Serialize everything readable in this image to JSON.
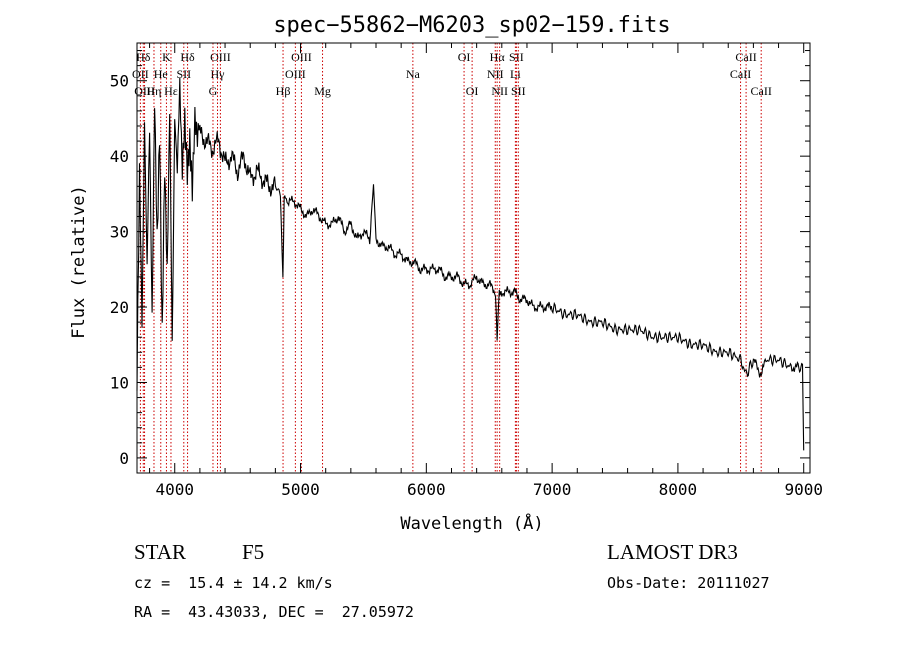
{
  "chart_data": {
    "type": "line",
    "title": "spec−55862−M6203_sp02−159.fits",
    "xlabel": "Wavelength (Å)",
    "ylabel": "Flux (relative)",
    "xlim": [
      3700,
      9050
    ],
    "ylim": [
      -2,
      55
    ],
    "x_ticks": [
      4000,
      5000,
      6000,
      7000,
      8000,
      9000
    ],
    "x_tick_labels": [
      "4000",
      "5000",
      "6000",
      "7000",
      "8000",
      "9000"
    ],
    "y_ticks": [
      0,
      10,
      20,
      30,
      40,
      50
    ],
    "y_tick_labels": [
      "0",
      "10",
      "20",
      "30",
      "40",
      "50"
    ],
    "series": [
      {
        "name": "flux",
        "x": [
          3700,
          3720,
          3740,
          3760,
          3780,
          3800,
          3820,
          3840,
          3860,
          3880,
          3900,
          3920,
          3940,
          3960,
          3980,
          4000,
          4020,
          4040,
          4060,
          4080,
          4100,
          4120,
          4140,
          4160,
          4180,
          4200,
          4250,
          4300,
          4350,
          4400,
          4450,
          4500,
          4550,
          4600,
          4650,
          4700,
          4750,
          4800,
          4840,
          4860,
          4870,
          4880,
          4900,
          4950,
          5000,
          5050,
          5100,
          5150,
          5200,
          5250,
          5300,
          5350,
          5400,
          5450,
          5500,
          5550,
          5580,
          5600,
          5650,
          5700,
          5750,
          5800,
          5850,
          5900,
          5950,
          6000,
          6050,
          6100,
          6150,
          6200,
          6250,
          6300,
          6350,
          6400,
          6450,
          6500,
          6550,
          6563,
          6580,
          6600,
          6650,
          6700,
          6750,
          6800,
          6850,
          6900,
          6950,
          7000,
          7100,
          7200,
          7300,
          7400,
          7500,
          7600,
          7700,
          7800,
          7900,
          8000,
          8100,
          8200,
          8300,
          8400,
          8500,
          8542,
          8600,
          8662,
          8700,
          8800,
          8900,
          8950,
          8990,
          9000
        ],
        "y": [
          12,
          40,
          20,
          45,
          25,
          42,
          16,
          46,
          28,
          44,
          18,
          41,
          26,
          47,
          14,
          43,
          36,
          48,
          38,
          46,
          40,
          44,
          37,
          45,
          41,
          43,
          42,
          41,
          42,
          39,
          40,
          38,
          40,
          37,
          38,
          37,
          36,
          36,
          35,
          24,
          34,
          35,
          34,
          34,
          33,
          32,
          33,
          32,
          31,
          31,
          32,
          30,
          31,
          29,
          30,
          29,
          36,
          29,
          28,
          28,
          27,
          27,
          26,
          26,
          25,
          25,
          25,
          25,
          24,
          24,
          24,
          23,
          23,
          24,
          23,
          23,
          22,
          16,
          22,
          22,
          22,
          22,
          21,
          21,
          20,
          20,
          20,
          20,
          19,
          19,
          18,
          18,
          17,
          17,
          17,
          16,
          16,
          16,
          15,
          15,
          14,
          14,
          13,
          11,
          13,
          11,
          13,
          13,
          12,
          12,
          12,
          1
        ]
      }
    ],
    "lines": [
      {
        "name": "Hδ",
        "lambda": 3750,
        "row": 1
      },
      {
        "name": "OII",
        "lambda": 3727,
        "row": 2
      },
      {
        "name": "OIII",
        "lambda": 3760,
        "row": 3
      },
      {
        "name": "K",
        "lambda": 3934,
        "row": 1
      },
      {
        "name": "He",
        "lambda": 3889,
        "row": 2
      },
      {
        "name": "Hη",
        "lambda": 3835,
        "row": 3
      },
      {
        "name": "SII",
        "lambda": 4072,
        "row": 2
      },
      {
        "name": "Hε",
        "lambda": 3970,
        "row": 3
      },
      {
        "name": "Hδ",
        "lambda": 4102,
        "row": 1
      },
      {
        "name": "OIII",
        "lambda": 4363,
        "row": 1
      },
      {
        "name": "Hγ",
        "lambda": 4340,
        "row": 2
      },
      {
        "name": "G",
        "lambda": 4304,
        "row": 3
      },
      {
        "name": "Hβ",
        "lambda": 4861,
        "row": 3
      },
      {
        "name": "OIII",
        "lambda": 5007,
        "row": 1
      },
      {
        "name": "OIII",
        "lambda": 4959,
        "row": 2
      },
      {
        "name": "Mg",
        "lambda": 5175,
        "row": 3
      },
      {
        "name": "Na",
        "lambda": 5893,
        "row": 2
      },
      {
        "name": "OI",
        "lambda": 6300,
        "row": 1
      },
      {
        "name": "OI",
        "lambda": 6364,
        "row": 3
      },
      {
        "name": "Hα",
        "lambda": 6563,
        "row": 1
      },
      {
        "name": "NII",
        "lambda": 6548,
        "row": 2
      },
      {
        "name": "NII",
        "lambda": 6583,
        "row": 3
      },
      {
        "name": "SII",
        "lambda": 6716,
        "row": 1
      },
      {
        "name": "Li",
        "lambda": 6708,
        "row": 2
      },
      {
        "name": "SII",
        "lambda": 6731,
        "row": 3
      },
      {
        "name": "CaII",
        "lambda": 8542,
        "row": 1
      },
      {
        "name": "CaII",
        "lambda": 8498,
        "row": 2
      },
      {
        "name": "CaII",
        "lambda": 8662,
        "row": 3
      }
    ],
    "line_color": "#cc0000",
    "spectrum_color": "#000000",
    "grid": false,
    "legend": "none"
  },
  "info": {
    "object_class": "STAR",
    "subclass": "F5",
    "survey": "LAMOST DR3",
    "velocity": "cz =  15.4 ± 14.2 km/s",
    "obs_date": "Obs-Date: 20111027",
    "coordinates": "RA =  43.43033, DEC =  27.05972"
  }
}
